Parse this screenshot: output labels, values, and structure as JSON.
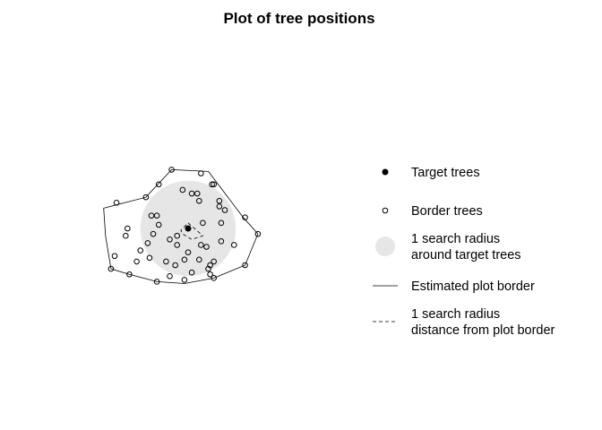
{
  "chart_data": {
    "type": "scatter",
    "title": "Plot of tree positions",
    "xlabel": "",
    "ylabel": "",
    "axes_shown": false,
    "grid": false,
    "legend_position": "right",
    "colors": {
      "search_area_fill": "#e6e6e6",
      "points": "#000000",
      "lines": "#000000",
      "background": "#ffffff"
    },
    "target_trees": [
      [
        0.0,
        0.0
      ]
    ],
    "search_radius": 2.6,
    "border_trees": [
      [
        -0.9,
        3.2
      ],
      [
        0.7,
        3.0
      ],
      [
        1.3,
        2.4
      ],
      [
        1.4,
        2.4
      ],
      [
        -1.6,
        2.4
      ],
      [
        -0.3,
        2.1
      ],
      [
        0.2,
        1.9
      ],
      [
        0.5,
        1.9
      ],
      [
        -2.3,
        1.7
      ],
      [
        -3.9,
        1.4
      ],
      [
        0.6,
        1.5
      ],
      [
        1.7,
        1.5
      ],
      [
        1.7,
        1.2
      ],
      [
        2.0,
        1.0
      ],
      [
        -1.7,
        0.7
      ],
      [
        3.1,
        0.6
      ],
      [
        0.8,
        0.3
      ],
      [
        1.8,
        0.3
      ],
      [
        -1.6,
        0.2
      ],
      [
        -3.3,
        0.0
      ],
      [
        -0.6,
        -0.4
      ],
      [
        -1.9,
        -0.3
      ],
      [
        -3.4,
        -0.4
      ],
      [
        -2.0,
        0.7
      ],
      [
        3.8,
        -0.3
      ],
      [
        -1.0,
        -0.6
      ],
      [
        -2.2,
        -0.8
      ],
      [
        0.7,
        -0.9
      ],
      [
        -0.6,
        -0.9
      ],
      [
        1.0,
        -1.0
      ],
      [
        1.8,
        -0.7
      ],
      [
        -2.6,
        -1.2
      ],
      [
        -4.0,
        -1.5
      ],
      [
        -2.1,
        -1.6
      ],
      [
        1.4,
        -1.8
      ],
      [
        -1.2,
        -1.8
      ],
      [
        0.0,
        -1.3
      ],
      [
        -0.2,
        -1.7
      ],
      [
        0.6,
        -1.7
      ],
      [
        1.2,
        -2.0
      ],
      [
        -0.7,
        -2.0
      ],
      [
        -2.8,
        -1.8
      ],
      [
        -4.2,
        -2.2
      ],
      [
        -3.2,
        -2.5
      ],
      [
        -1.0,
        -2.6
      ],
      [
        0.2,
        -2.4
      ],
      [
        1.1,
        -2.2
      ],
      [
        1.2,
        -2.5
      ],
      [
        3.1,
        -2.0
      ],
      [
        2.5,
        -0.9
      ],
      [
        -1.7,
        -2.9
      ],
      [
        -0.2,
        -2.8
      ],
      [
        1.4,
        -2.7
      ]
    ],
    "estimated_plot_border": [
      [
        -0.9,
        3.2
      ],
      [
        1.1,
        3.1
      ],
      [
        3.0,
        0.6
      ],
      [
        3.8,
        -0.3
      ],
      [
        3.1,
        -2.0
      ],
      [
        1.4,
        -2.7
      ],
      [
        -0.2,
        -3.0
      ],
      [
        -1.7,
        -2.9
      ],
      [
        -3.2,
        -2.5
      ],
      [
        -4.2,
        -2.2
      ],
      [
        -4.5,
        -0.4
      ],
      [
        -4.6,
        1.1
      ],
      [
        -2.3,
        1.7
      ],
      [
        -0.9,
        3.2
      ]
    ],
    "inner_border": [
      [
        0.0,
        0.3
      ],
      [
        0.8,
        -0.4
      ],
      [
        0.2,
        -0.6
      ],
      [
        -0.3,
        -0.3
      ],
      [
        -0.4,
        -0.1
      ],
      [
        0.0,
        0.3
      ]
    ],
    "legend": [
      {
        "label": "Target trees",
        "symbol": "filled-circle"
      },
      {
        "label": "Border trees",
        "symbol": "open-circle"
      },
      {
        "label": "1 search radius\naround target trees",
        "symbol": "gray-disc"
      },
      {
        "label": "Estimated plot border",
        "symbol": "solid-line"
      },
      {
        "label": "1 search radius\ndistance from plot border",
        "symbol": "dashed-line"
      }
    ]
  }
}
